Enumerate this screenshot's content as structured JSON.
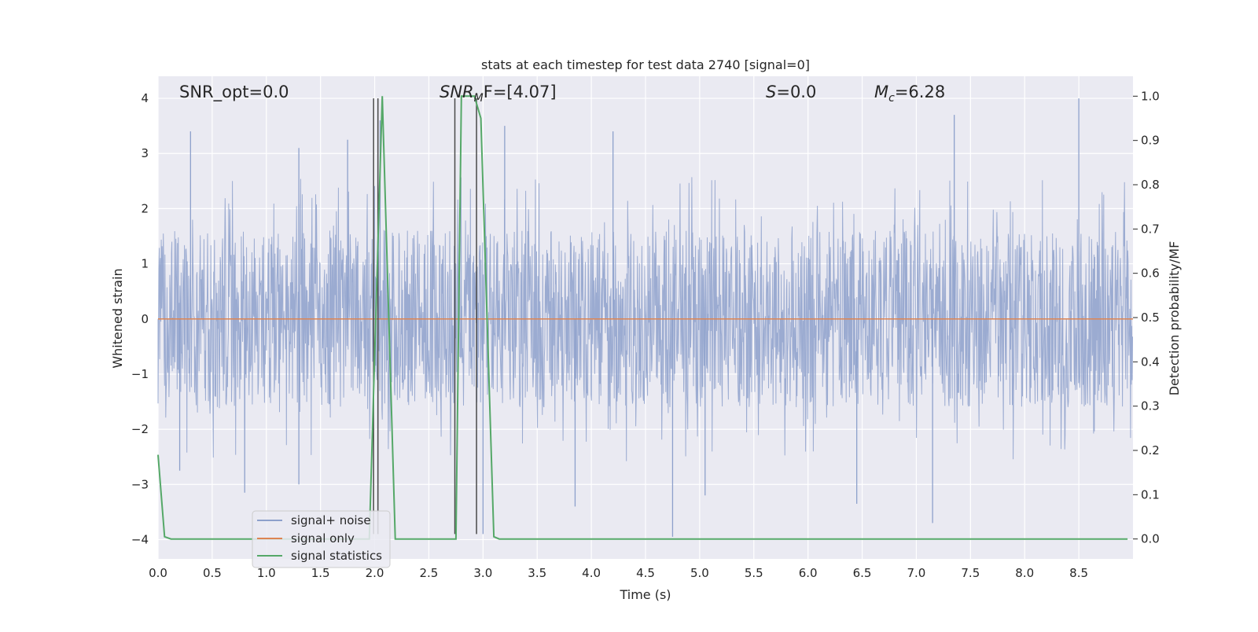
{
  "chart_data": {
    "type": "line",
    "title": "stats at each timestep for test data 2740 [signal=0]",
    "xlabel": "Time (s)",
    "ylabel": "Whitened strain",
    "ylabel_right": "Detection probability/MF",
    "xlim": [
      0.0,
      9.0
    ],
    "ylim": [
      -4.35,
      4.4
    ],
    "ylim_right": [
      -0.045,
      1.045
    ],
    "xticks": [
      0.0,
      0.5,
      1.0,
      1.5,
      2.0,
      2.5,
      3.0,
      3.5,
      4.0,
      4.5,
      5.0,
      5.5,
      6.0,
      6.5,
      7.0,
      7.5,
      8.0,
      8.5
    ],
    "xtick_labels": [
      "0.0",
      "0.5",
      "1.0",
      "1.5",
      "2.0",
      "2.5",
      "3.0",
      "3.5",
      "4.0",
      "4.5",
      "5.0",
      "5.5",
      "6.0",
      "6.5",
      "7.0",
      "7.5",
      "8.0",
      "8.5"
    ],
    "yticks": [
      -4,
      -3,
      -2,
      -1,
      0,
      1,
      2,
      3,
      4
    ],
    "ytick_labels": [
      "−4",
      "−3",
      "−2",
      "−1",
      "0",
      "1",
      "2",
      "3",
      "4"
    ],
    "yticks_right": [
      0.0,
      0.1,
      0.2,
      0.3,
      0.4,
      0.5,
      0.6,
      0.7,
      0.8,
      0.9,
      1.0
    ],
    "ytick_labels_right": [
      "0.0",
      "0.1",
      "0.2",
      "0.3",
      "0.4",
      "0.5",
      "0.6",
      "0.7",
      "0.8",
      "0.9",
      "1.0"
    ],
    "grid": true,
    "legend_position": "lower-left",
    "series": [
      {
        "name": "signal+ noise",
        "color": "#8da0cb",
        "description": "whitened noise, envelope roughly ±1.6 with spikes to about ±4",
        "peaks_high": [
          [
            0.3,
            3.4
          ],
          [
            1.3,
            3.1
          ],
          [
            1.75,
            3.25
          ],
          [
            2.05,
            3.6
          ],
          [
            3.2,
            3.5
          ],
          [
            4.2,
            3.4
          ],
          [
            7.35,
            3.7
          ],
          [
            8.5,
            4.0
          ]
        ],
        "peaks_low": [
          [
            0.2,
            -2.75
          ],
          [
            0.8,
            -3.15
          ],
          [
            1.3,
            -3.0
          ],
          [
            3.0,
            -3.9
          ],
          [
            3.85,
            -3.4
          ],
          [
            4.75,
            -3.95
          ],
          [
            5.05,
            -3.2
          ],
          [
            6.45,
            -3.35
          ],
          [
            7.15,
            -3.7
          ]
        ]
      },
      {
        "name": "signal only",
        "color": "#dd8452",
        "x": [
          0.0,
          9.0
        ],
        "y": [
          0.0,
          0.0
        ]
      },
      {
        "name": "signal statistics",
        "color": "#55a868",
        "axis": "right",
        "x": [
          0.0,
          0.06,
          0.12,
          1.95,
          2.07,
          2.19,
          2.75,
          2.8,
          2.92,
          2.98,
          3.1,
          3.15,
          8.95
        ],
        "y": [
          0.19,
          0.005,
          0.0,
          0.0,
          1.0,
          0.0,
          0.0,
          1.0,
          1.0,
          0.95,
          0.005,
          0.0,
          0.0
        ]
      }
    ],
    "vlines": [
      1.99,
      2.03,
      2.74,
      2.94
    ],
    "annotations": {
      "snr_opt": "SNR_opt=0.0",
      "snr_mf_sym": "SNR",
      "snr_mf_sub": "M",
      "snr_mf_rest": "F=[4.07]",
      "s_sym": "S",
      "s_rest": "=0.0",
      "mc_sym": "M",
      "mc_sub": "c",
      "mc_rest": "=6.28"
    },
    "colors": {
      "axes_background": "#eaeaf2",
      "grid": "#ffffff",
      "vline": "#4a4a4a"
    }
  }
}
